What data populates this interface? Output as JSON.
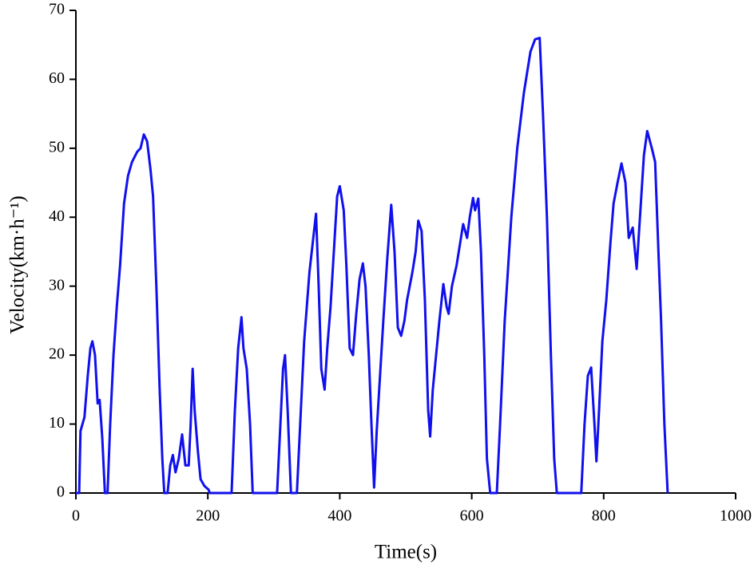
{
  "chart_data": {
    "type": "line",
    "x_label": "Time(s)",
    "y_label": "Velocity(km·h⁻¹)",
    "xlim": [
      0,
      1000
    ],
    "xticks": [
      0,
      200,
      400,
      600,
      800,
      1000
    ],
    "ylim": [
      0,
      70
    ],
    "yticks": [
      0,
      10,
      20,
      30,
      40,
      50,
      60,
      70
    ],
    "x": [
      0,
      5,
      7,
      13,
      18,
      22,
      25,
      29,
      33,
      36,
      40,
      44,
      48,
      52,
      57,
      62,
      67,
      73,
      79,
      85,
      93,
      98,
      103,
      108,
      113,
      117,
      122,
      127,
      131,
      134,
      139,
      143,
      147,
      151,
      156,
      161,
      166,
      171,
      174,
      177,
      180,
      185,
      189,
      195,
      201,
      203,
      236,
      241,
      246,
      251,
      254,
      259,
      264,
      268,
      305,
      310,
      314,
      317,
      321,
      326,
      335,
      340,
      346,
      354,
      361,
      364,
      368,
      372,
      377,
      381,
      386,
      391,
      396,
      400,
      406,
      410,
      415,
      420,
      425,
      430,
      435,
      439,
      444,
      448,
      452,
      456,
      461,
      466,
      472,
      478,
      483,
      488,
      493,
      498,
      502,
      510,
      515,
      519,
      524,
      529,
      534,
      537,
      541,
      546,
      551,
      557,
      562,
      565,
      570,
      577,
      582,
      587,
      593,
      597,
      602,
      605,
      610,
      614,
      619,
      623,
      628,
      638,
      643,
      650,
      660,
      669,
      679,
      689,
      696,
      703,
      708,
      714,
      720,
      725,
      729,
      766,
      771,
      776,
      781,
      786,
      789,
      793,
      798,
      804,
      810,
      815,
      821,
      827,
      833,
      838,
      844,
      850,
      855,
      861,
      866,
      873,
      878,
      883,
      887,
      892,
      897
    ],
    "series": [
      {
        "name": "Velocity",
        "color": "#1010ee",
        "values": [
          0,
          0,
          9,
          11,
          17,
          21,
          22,
          20,
          13,
          13.5,
          8,
          0,
          0,
          10,
          20,
          27,
          33,
          42,
          46,
          48,
          49.5,
          50,
          52,
          51,
          47,
          43,
          30,
          15,
          5,
          0,
          0,
          4,
          5.5,
          3,
          5,
          8.5,
          4,
          4,
          10,
          18,
          12,
          6,
          2,
          1,
          0.5,
          0,
          0,
          12,
          21,
          25.5,
          21,
          18,
          10,
          0,
          0,
          10,
          18,
          20,
          12,
          0,
          0,
          10,
          22,
          32,
          38,
          40.5,
          30,
          18,
          15,
          21,
          27,
          35,
          43,
          44.5,
          41,
          33,
          21,
          20,
          26,
          31,
          33.3,
          30,
          20,
          10,
          0.8,
          9,
          17,
          25,
          34,
          41.8,
          35,
          24,
          22.8,
          25,
          28,
          32,
          35,
          39.5,
          38,
          28,
          12,
          8.2,
          15,
          20,
          25,
          30.3,
          27,
          26,
          30,
          33,
          36,
          39,
          37,
          40,
          42.8,
          41,
          42.7,
          35,
          20,
          5,
          0,
          0,
          10,
          25,
          40,
          50,
          58,
          64,
          65.8,
          66,
          55,
          40,
          20,
          5,
          0,
          0,
          10,
          17,
          18.2,
          10,
          4.6,
          12,
          22,
          28,
          36,
          42,
          45,
          47.8,
          45,
          37,
          38.5,
          32.5,
          40,
          49,
          52.5,
          50,
          48,
          35,
          25,
          10,
          0
        ]
      }
    ]
  }
}
